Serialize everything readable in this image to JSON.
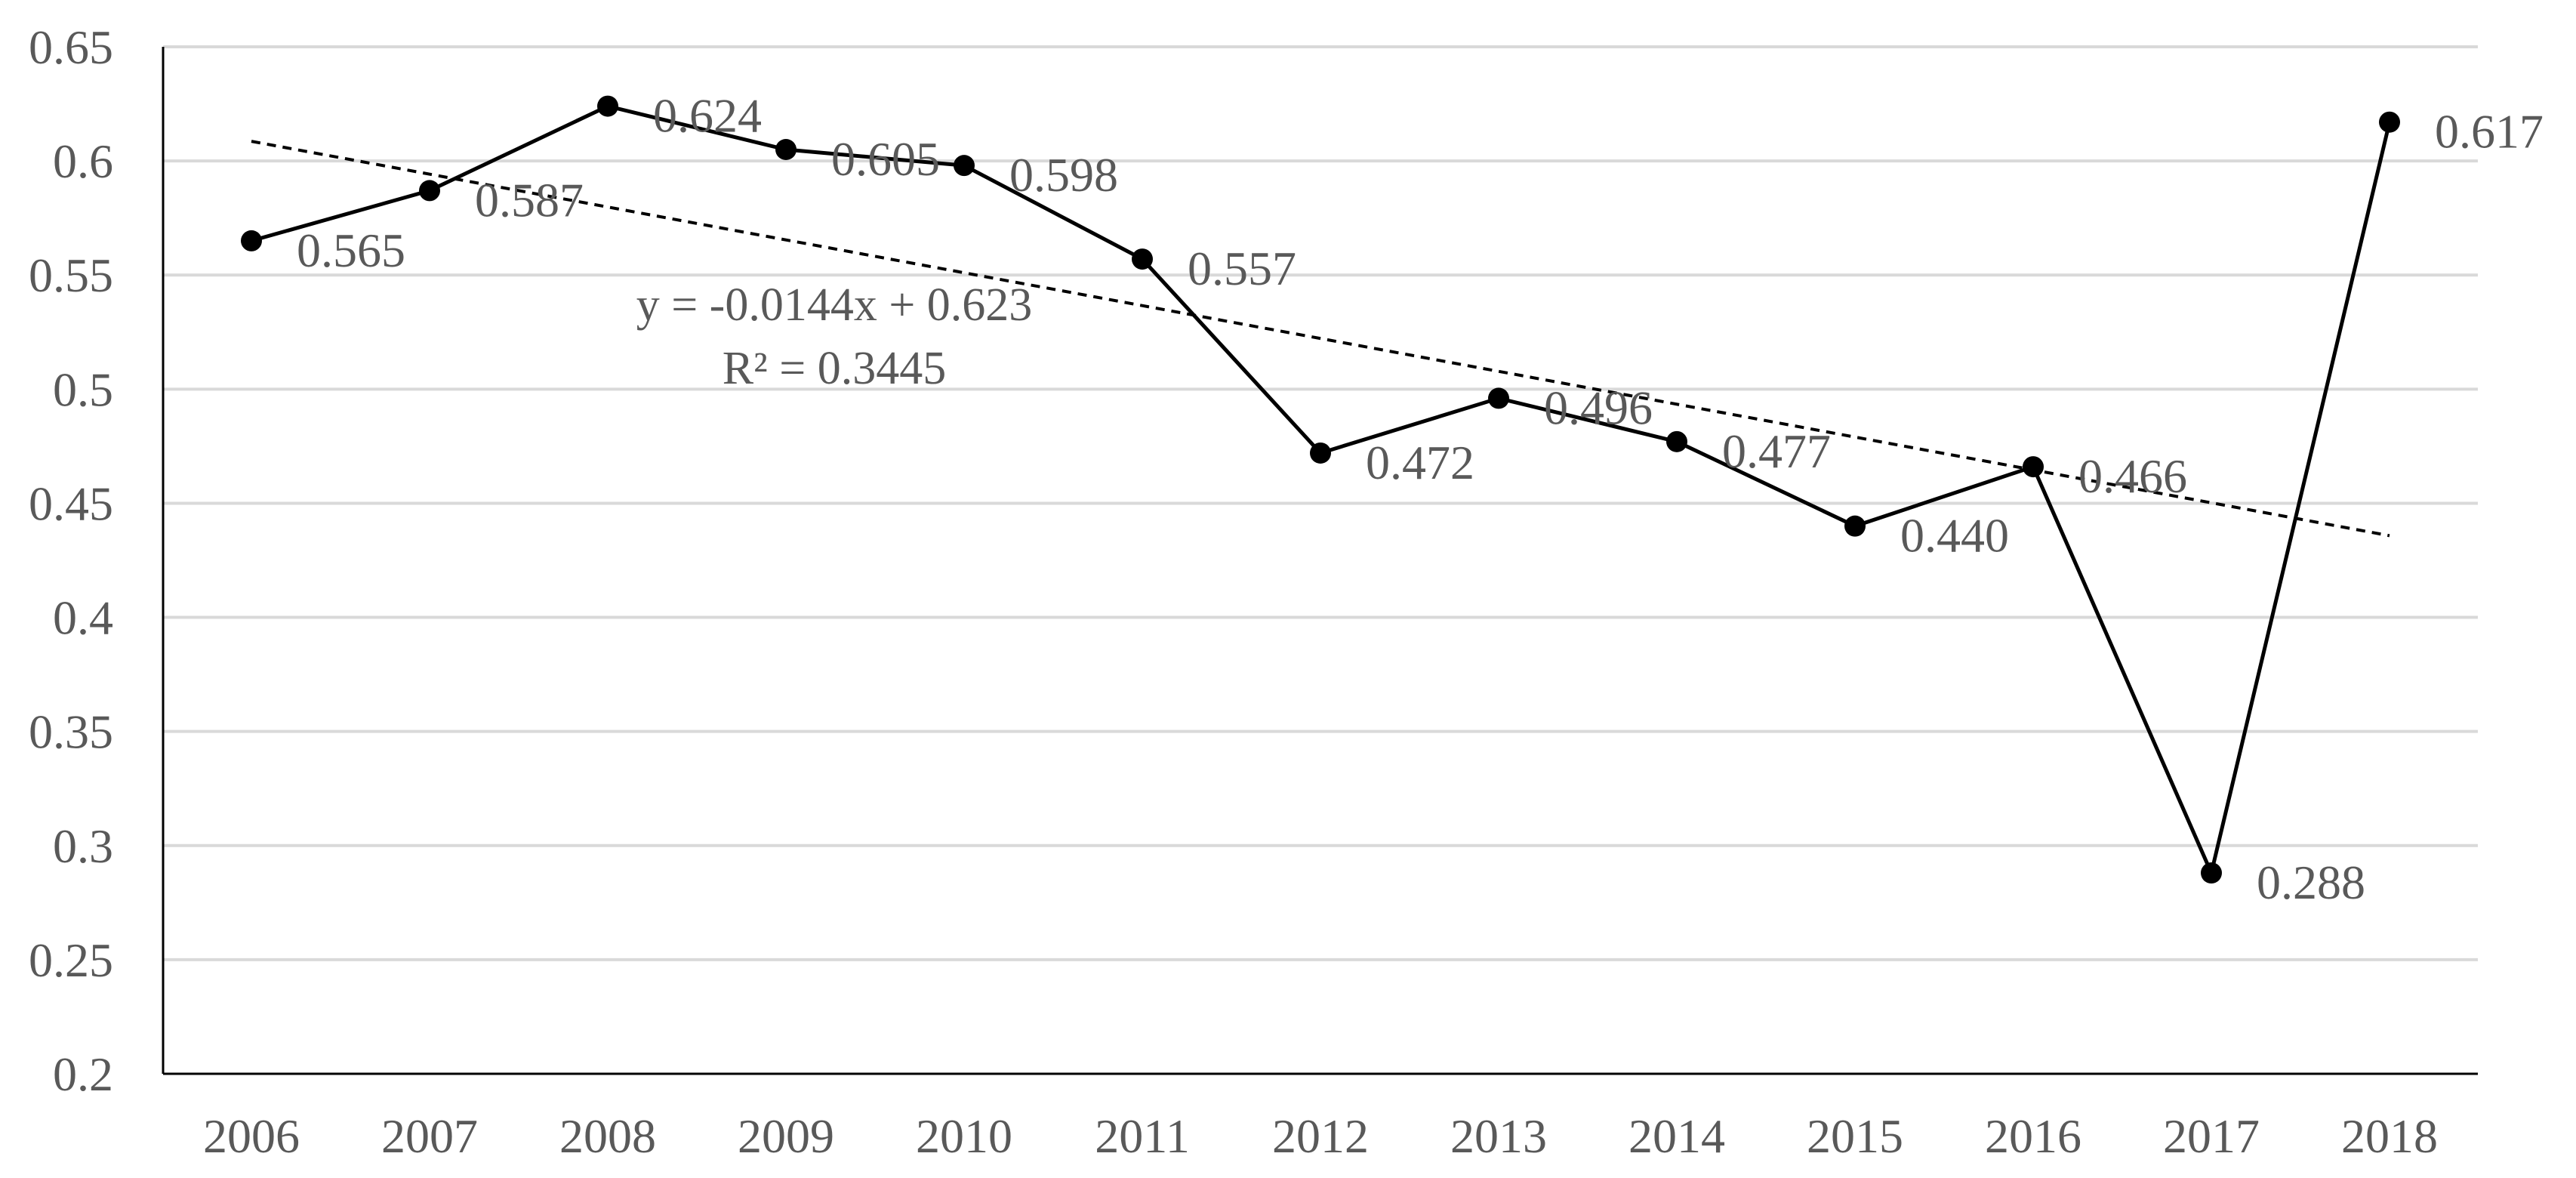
{
  "chart_data": {
    "type": "line",
    "x": [
      "2006",
      "2007",
      "2008",
      "2009",
      "2010",
      "2011",
      "2012",
      "2013",
      "2014",
      "2015",
      "2016",
      "2017",
      "2018"
    ],
    "series": [
      {
        "values": [
          0.565,
          0.587,
          0.624,
          0.605,
          0.598,
          0.557,
          0.472,
          0.496,
          0.477,
          0.44,
          0.466,
          0.288,
          0.617
        ],
        "labels": [
          "0.565",
          "0.587",
          "0.624",
          "0.605",
          "0.598",
          "0.557",
          "0.472",
          "0.496",
          "0.477",
          "0.440",
          "0.466",
          "0.288",
          "0.617"
        ],
        "color": "#000000",
        "marker": "circle"
      }
    ],
    "trendline": {
      "type": "linear",
      "style": "dashed",
      "slope": -0.0144,
      "intercept": 0.623,
      "equation": "y = -0.0144x + 0.623",
      "r_squared": "R² = 0.3445"
    },
    "yticks": [
      "0.2",
      "0.25",
      "0.3",
      "0.35",
      "0.4",
      "0.45",
      "0.5",
      "0.55",
      "0.6",
      "0.65"
    ],
    "ylim": [
      0.2,
      0.65
    ],
    "grid": "horizontal",
    "gridColor": "#d9d9d9",
    "textColor": "#595959",
    "title": "",
    "xlabel": "",
    "ylabel": ""
  }
}
